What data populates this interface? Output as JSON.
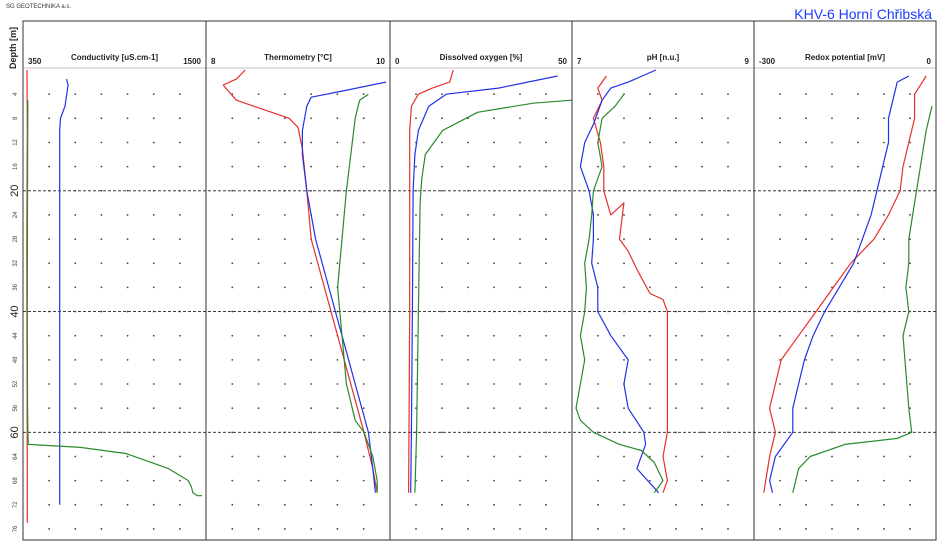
{
  "header": {
    "company": "SG GEOTECHNIKA a.s.",
    "site": "KHV-6 Horní Chřibská"
  },
  "colors": {
    "red": "#e8302a",
    "blue": "#2230e6",
    "green": "#2a8a2a",
    "accent": "#1a3cff"
  },
  "chart_data": {
    "type": "line",
    "ylabel": "Depth [m]",
    "ylim": [
      0,
      77
    ],
    "y_invert": true,
    "ytick_values": [
      4,
      8,
      12,
      16,
      20,
      24,
      28,
      32,
      36,
      40,
      44,
      48,
      52,
      56,
      60,
      64,
      68,
      72,
      76
    ],
    "y_major_labels": [
      "20",
      "40",
      "60"
    ],
    "y_minor_labels": [
      "4",
      "8",
      "12",
      "16",
      "24",
      "28",
      "32",
      "36",
      "44",
      "48",
      "52",
      "56",
      "64",
      "68",
      "72",
      "76"
    ],
    "dashed_depths": [
      20,
      40,
      60
    ],
    "panels": [
      {
        "title": "Conductivity [uS.cm-1]",
        "xmin_label": "350",
        "xmax_label": "1500",
        "xlim": [
          350,
          1500
        ],
        "series": [
          {
            "color": "red",
            "points": [
              [
                350,
                0
              ],
              [
                352,
                10
              ],
              [
                349,
                30
              ],
              [
                351,
                60
              ],
              [
                352,
                75
              ]
            ]
          },
          {
            "color": "blue",
            "points": [
              [
                610,
                1.5
              ],
              [
                620,
                2.5
              ],
              [
                600,
                6
              ],
              [
                570,
                8
              ],
              [
                565,
                10
              ],
              [
                565,
                30
              ],
              [
                565,
                50
              ],
              [
                565,
                72
              ]
            ]
          },
          {
            "color": "green",
            "points": [
              [
                355,
                5
              ],
              [
                353,
                20
              ],
              [
                352,
                40
              ],
              [
                353,
                55
              ],
              [
                356,
                60
              ],
              [
                358,
                62
              ],
              [
                700,
                62.5
              ],
              [
                1000,
                63.5
              ],
              [
                1280,
                66
              ],
              [
                1410,
                68
              ],
              [
                1430,
                69
              ],
              [
                1440,
                70
              ],
              [
                1470,
                70.5
              ],
              [
                1500,
                70.5
              ]
            ]
          }
        ]
      },
      {
        "title": "Thermometry [°C]",
        "xmin_label": "8",
        "xmax_label": "10",
        "xlim": [
          8,
          10
        ],
        "series": [
          {
            "color": "red",
            "points": [
              [
                8.4,
                0
              ],
              [
                8.3,
                1.5
              ],
              [
                8.15,
                2.5
              ],
              [
                8.3,
                5
              ],
              [
                8.7,
                7
              ],
              [
                8.9,
                8
              ],
              [
                9.0,
                9.5
              ],
              [
                9.05,
                13
              ],
              [
                9.1,
                20
              ],
              [
                9.15,
                28
              ],
              [
                9.3,
                36
              ],
              [
                9.45,
                44
              ],
              [
                9.6,
                52
              ],
              [
                9.75,
                60
              ],
              [
                9.85,
                66
              ],
              [
                9.9,
                70
              ]
            ]
          },
          {
            "color": "blue",
            "points": [
              [
                10,
                2
              ],
              [
                9.5,
                3.5
              ],
              [
                9.15,
                4.5
              ],
              [
                9.1,
                6
              ],
              [
                9.05,
                10
              ],
              [
                9.05,
                14
              ],
              [
                9.1,
                20
              ],
              [
                9.2,
                28
              ],
              [
                9.35,
                36
              ],
              [
                9.5,
                44
              ],
              [
                9.65,
                52
              ],
              [
                9.8,
                60
              ],
              [
                9.85,
                66
              ],
              [
                9.88,
                70
              ]
            ]
          },
          {
            "color": "green",
            "points": [
              [
                9.8,
                4
              ],
              [
                9.7,
                5
              ],
              [
                9.65,
                8
              ],
              [
                9.6,
                14
              ],
              [
                9.55,
                20
              ],
              [
                9.5,
                28
              ],
              [
                9.45,
                36
              ],
              [
                9.5,
                44
              ],
              [
                9.55,
                52
              ],
              [
                9.65,
                58
              ],
              [
                9.75,
                60
              ],
              [
                9.85,
                64
              ],
              [
                9.9,
                68
              ],
              [
                9.9,
                70
              ]
            ]
          }
        ]
      },
      {
        "title": "Dissolved oxygen [%]",
        "xmin_label": "0",
        "xmax_label": "50",
        "xlim": [
          0,
          50
        ],
        "series": [
          {
            "color": "red",
            "points": [
              [
                17,
                0
              ],
              [
                16,
                2
              ],
              [
                11,
                3
              ],
              [
                7,
                4
              ],
              [
                5,
                6
              ],
              [
                4.5,
                10
              ],
              [
                4.5,
                20
              ],
              [
                4.5,
                40
              ],
              [
                4.3,
                60
              ],
              [
                4.2,
                70
              ]
            ]
          },
          {
            "color": "blue",
            "points": [
              [
                47,
                1
              ],
              [
                30,
                3
              ],
              [
                15,
                4
              ],
              [
                10,
                6
              ],
              [
                7,
                10
              ],
              [
                6,
                14
              ],
              [
                5.5,
                20
              ],
              [
                5.3,
                40
              ],
              [
                5,
                60
              ],
              [
                4.8,
                70
              ]
            ]
          },
          {
            "color": "green",
            "points": [
              [
                51,
                5
              ],
              [
                40,
                5.5
              ],
              [
                24,
                7
              ],
              [
                14,
                10
              ],
              [
                9,
                14
              ],
              [
                8,
                18
              ],
              [
                7.5,
                22
              ],
              [
                7,
                40
              ],
              [
                6.5,
                60
              ],
              [
                6,
                70
              ]
            ]
          }
        ]
      },
      {
        "title": "pH [n.u.]",
        "xmin_label": "7",
        "xmax_label": "9",
        "xlim": [
          7,
          9
        ],
        "series": [
          {
            "color": "red",
            "points": [
              [
                7.35,
                1
              ],
              [
                7.25,
                3
              ],
              [
                7.3,
                5
              ],
              [
                7.2,
                8
              ],
              [
                7.28,
                12
              ],
              [
                7.32,
                16
              ],
              [
                7.32,
                20
              ],
              [
                7.4,
                24
              ],
              [
                7.55,
                22
              ],
              [
                7.5,
                28
              ],
              [
                7.6,
                30
              ],
              [
                7.7,
                33
              ],
              [
                7.85,
                37
              ],
              [
                8.0,
                38
              ],
              [
                8.05,
                40
              ],
              [
                8.05,
                50
              ],
              [
                8.05,
                60
              ],
              [
                8.0,
                64
              ],
              [
                8.05,
                68
              ],
              [
                8.0,
                70
              ]
            ]
          },
          {
            "color": "blue",
            "points": [
              [
                7.92,
                0
              ],
              [
                7.6,
                2
              ],
              [
                7.4,
                3
              ],
              [
                7.3,
                5
              ],
              [
                7.2,
                9
              ],
              [
                7.1,
                12
              ],
              [
                7.05,
                16
              ],
              [
                7.15,
                20
              ],
              [
                7.2,
                24
              ],
              [
                7.2,
                28
              ],
              [
                7.18,
                32
              ],
              [
                7.25,
                36
              ],
              [
                7.25,
                40
              ],
              [
                7.4,
                44
              ],
              [
                7.6,
                48
              ],
              [
                7.55,
                52
              ],
              [
                7.6,
                56
              ],
              [
                7.78,
                60
              ],
              [
                7.8,
                62
              ],
              [
                7.7,
                66
              ],
              [
                7.95,
                70
              ]
            ]
          },
          {
            "color": "green",
            "points": [
              [
                7.55,
                4
              ],
              [
                7.45,
                6
              ],
              [
                7.3,
                8
              ],
              [
                7.25,
                12
              ],
              [
                7.3,
                16
              ],
              [
                7.2,
                20
              ],
              [
                7.18,
                24
              ],
              [
                7.15,
                28
              ],
              [
                7.1,
                32
              ],
              [
                7.12,
                36
              ],
              [
                7.1,
                40
              ],
              [
                7.05,
                44
              ],
              [
                7.1,
                48
              ],
              [
                7.05,
                52
              ],
              [
                7.0,
                56
              ],
              [
                7.05,
                58
              ],
              [
                7.2,
                60
              ],
              [
                7.5,
                62
              ],
              [
                7.75,
                63
              ],
              [
                7.9,
                65
              ],
              [
                8.0,
                68
              ],
              [
                7.9,
                70
              ]
            ]
          }
        ]
      },
      {
        "title": "Redox potential [mV]",
        "xmin_label": "-300",
        "xmax_label": "0",
        "xlim": [
          -300,
          0
        ],
        "series": [
          {
            "color": "red",
            "points": [
              [
                -10,
                1
              ],
              [
                -30,
                4
              ],
              [
                -30,
                8
              ],
              [
                -40,
                12
              ],
              [
                -50,
                16
              ],
              [
                -55,
                20
              ],
              [
                -75,
                24
              ],
              [
                -100,
                28
              ],
              [
                -140,
                32
              ],
              [
                -170,
                36
              ],
              [
                -200,
                40
              ],
              [
                -230,
                44
              ],
              [
                -260,
                48
              ],
              [
                -270,
                52
              ],
              [
                -280,
                56
              ],
              [
                -270,
                60
              ],
              [
                -280,
                64
              ],
              [
                -290,
                70
              ]
            ]
          },
          {
            "color": "blue",
            "points": [
              [
                -40,
                1
              ],
              [
                -60,
                2
              ],
              [
                -65,
                4
              ],
              [
                -75,
                8
              ],
              [
                -75,
                12
              ],
              [
                -85,
                16
              ],
              [
                -95,
                20
              ],
              [
                -105,
                24
              ],
              [
                -120,
                28
              ],
              [
                -135,
                32
              ],
              [
                -160,
                36
              ],
              [
                -185,
                40
              ],
              [
                -205,
                44
              ],
              [
                -220,
                48
              ],
              [
                -230,
                52
              ],
              [
                -240,
                56
              ],
              [
                -240,
                60
              ],
              [
                -270,
                64
              ],
              [
                -280,
                68
              ],
              [
                -275,
                70
              ]
            ]
          },
          {
            "color": "green",
            "points": [
              [
                0,
                6
              ],
              [
                -10,
                10
              ],
              [
                -20,
                16
              ],
              [
                -30,
                22
              ],
              [
                -40,
                28
              ],
              [
                -40,
                32
              ],
              [
                -45,
                36
              ],
              [
                -40,
                40
              ],
              [
                -50,
                44
              ],
              [
                -45,
                50
              ],
              [
                -40,
                56
              ],
              [
                -35,
                60
              ],
              [
                -60,
                61
              ],
              [
                -150,
                62
              ],
              [
                -210,
                64
              ],
              [
                -230,
                66
              ],
              [
                -240,
                70
              ]
            ]
          }
        ]
      }
    ]
  }
}
